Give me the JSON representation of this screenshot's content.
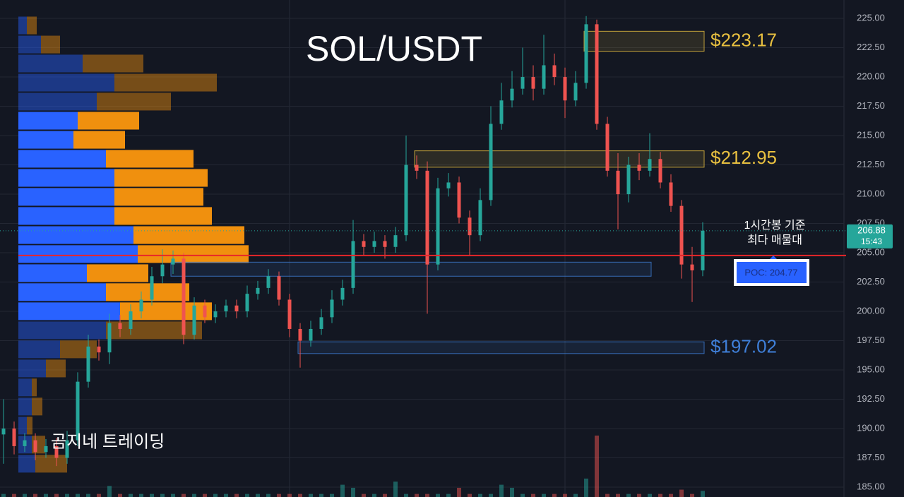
{
  "chart_data": {
    "type": "candlestick",
    "title": "SOL/USDT",
    "watermark": "곰지네 트레이딩",
    "annotation": [
      "1시간봉 기준",
      "최다 매물대"
    ],
    "ylim": [
      184.16,
      226.57
    ],
    "yticks": [
      {
        "value": 185,
        "label": "185.00"
      },
      {
        "value": 187.5,
        "label": "187.50"
      },
      {
        "value": 190,
        "label": "190.00"
      },
      {
        "value": 192.5,
        "label": "192.50"
      },
      {
        "value": 195,
        "label": "195.00"
      },
      {
        "value": 197.5,
        "label": "197.50"
      },
      {
        "value": 200,
        "label": "200.00"
      },
      {
        "value": 202.5,
        "label": "202.50"
      },
      {
        "value": 205,
        "label": "205.00"
      },
      {
        "value": 207.5,
        "label": "207.50"
      },
      {
        "value": 210,
        "label": "210.00"
      },
      {
        "value": 212.5,
        "label": "212.50"
      },
      {
        "value": 215,
        "label": "215.00"
      },
      {
        "value": 217.5,
        "label": "217.50"
      },
      {
        "value": 220,
        "label": "220.00"
      },
      {
        "value": 222.5,
        "label": "222.50"
      },
      {
        "value": 225,
        "label": "225.00"
      }
    ],
    "grid": true,
    "up_color": "#26a69a",
    "down_color": "#ef5350",
    "open": [
      189.5,
      190,
      188.5,
      189,
      188,
      188.5,
      187.5,
      189,
      194,
      197,
      196.5,
      199,
      198.5,
      200,
      201,
      203,
      204,
      204.5,
      198,
      200.5,
      199.5,
      200,
      200.5,
      200,
      201.5,
      202,
      203,
      201,
      198.5,
      197.5,
      198.5,
      199.5,
      201,
      202,
      206,
      205.5,
      206,
      205.5,
      206.5,
      212.5,
      212,
      204,
      210.5,
      211,
      208,
      206.5,
      209.5,
      216,
      218,
      219,
      220,
      219,
      221,
      220,
      218,
      219.5,
      224.5,
      216,
      212,
      210,
      212.5,
      212,
      213,
      211,
      209,
      204,
      203.5
    ],
    "high": [
      192.5,
      190.6,
      189.6,
      189.6,
      189.1,
      189.2,
      189.8,
      194.8,
      198,
      197.6,
      199.8,
      199.7,
      200.6,
      201.7,
      203.8,
      205.3,
      205.2,
      205,
      201.2,
      201,
      200.6,
      201,
      201,
      202.2,
      202.6,
      203.6,
      203.4,
      201.5,
      199,
      199.2,
      200.2,
      201.8,
      202.7,
      207.8,
      206.6,
      206.8,
      206.5,
      207.2,
      215,
      213.3,
      212.8,
      211.4,
      211.8,
      211.5,
      208.6,
      210.5,
      217.5,
      219.5,
      220.5,
      222.5,
      221,
      223.6,
      222,
      220.8,
      220.5,
      225.2,
      224.9,
      216.6,
      213.5,
      213.2,
      213.5,
      215.2,
      213.6,
      211.7,
      209.5,
      205.5,
      207.6
    ],
    "low": [
      187,
      187.8,
      188,
      187.3,
      187.5,
      186.8,
      187,
      188.5,
      193.5,
      195.8,
      195.5,
      197.8,
      198,
      199.4,
      200.5,
      202.4,
      203.2,
      197.2,
      197.6,
      199,
      199,
      199.5,
      199.4,
      199.5,
      201,
      201.5,
      200.5,
      197.8,
      195.2,
      197,
      198,
      199,
      200.5,
      201.5,
      204.8,
      205,
      204.5,
      205,
      206,
      211.3,
      199.8,
      203.5,
      209.8,
      207.5,
      204.7,
      206,
      209,
      215.5,
      217.4,
      218.5,
      218,
      218.5,
      219.3,
      216.5,
      217.5,
      219,
      215.5,
      211.5,
      207,
      209.3,
      211.2,
      211.5,
      210.5,
      208.5,
      202.8,
      200.8,
      203
    ],
    "close": [
      190,
      188.5,
      189,
      188,
      188.5,
      187.5,
      189,
      194,
      197,
      196.5,
      199,
      198.5,
      200,
      201,
      203,
      204,
      204.5,
      198,
      200.5,
      199.5,
      200,
      200.5,
      200,
      201.5,
      202,
      203,
      201,
      198.5,
      197.5,
      198.5,
      199.5,
      201,
      202,
      206,
      205.5,
      206,
      205.5,
      206.5,
      212.5,
      212,
      204,
      210.5,
      211,
      208,
      206.5,
      209.5,
      216,
      218,
      219,
      220,
      219,
      221,
      220,
      218,
      219.5,
      224.5,
      216,
      212,
      210,
      212.5,
      212,
      213,
      211,
      209,
      204,
      203.5,
      206.88
    ],
    "volume": [
      5,
      5,
      5,
      5,
      5,
      5,
      5,
      5,
      5,
      5,
      18,
      5,
      5,
      5,
      5,
      5,
      5,
      5,
      5,
      5,
      5,
      5,
      5,
      5,
      5,
      5,
      5,
      5,
      5,
      5,
      5,
      5,
      20,
      15,
      5,
      5,
      5,
      25,
      5,
      5,
      5,
      5,
      5,
      15,
      5,
      5,
      5,
      20,
      15,
      5,
      5,
      5,
      5,
      5,
      5,
      30,
      100,
      5,
      5,
      5,
      5,
      5,
      5,
      5,
      12,
      5,
      10
    ],
    "volume_profile": {
      "levels": [
        224.4,
        222.77,
        221.15,
        219.52,
        217.9,
        216.27,
        214.64,
        213.02,
        211.39,
        209.77,
        208.14,
        206.51,
        204.89,
        203.26,
        201.64,
        200.01,
        198.38,
        196.76,
        195.13,
        193.51,
        191.88,
        190.25,
        188.63,
        187.0
      ],
      "buy": [
        12,
        32,
        91,
        136,
        111,
        84,
        78,
        124,
        136,
        136,
        136,
        163,
        169,
        97,
        124,
        144,
        124,
        59,
        39,
        19,
        19,
        12,
        19,
        24
      ],
      "sell": [
        14,
        27,
        86,
        145,
        105,
        87,
        73,
        124,
        132,
        126,
        138,
        157,
        157,
        87,
        118,
        130,
        136,
        52,
        28,
        7,
        15,
        8,
        19,
        45
      ],
      "buy_color": "#2962ff",
      "sell_color": "#f0900e",
      "value_area": [
        199.2,
        217.1
      ]
    },
    "zones": [
      {
        "low": 222.2,
        "high": 223.9,
        "from": 55,
        "to": 66,
        "color": "#e8c040",
        "label": "$223.17"
      },
      {
        "low": 212.3,
        "high": 213.7,
        "from": 39,
        "to": 66,
        "color": "#e8c040",
        "label": "$212.95"
      },
      {
        "low": 203.0,
        "high": 204.2,
        "from": 16,
        "to": 61,
        "color": "#3f7fd8"
      },
      {
        "low": 196.4,
        "high": 197.4,
        "from": 28,
        "to": 66,
        "color": "#3f7fd8",
        "label": "$197.02"
      }
    ],
    "poc": 204.77,
    "poc_label": "POC: 204.77",
    "poc_color": "#e8262a",
    "last_price": 206.88,
    "countdown": "15:43"
  }
}
